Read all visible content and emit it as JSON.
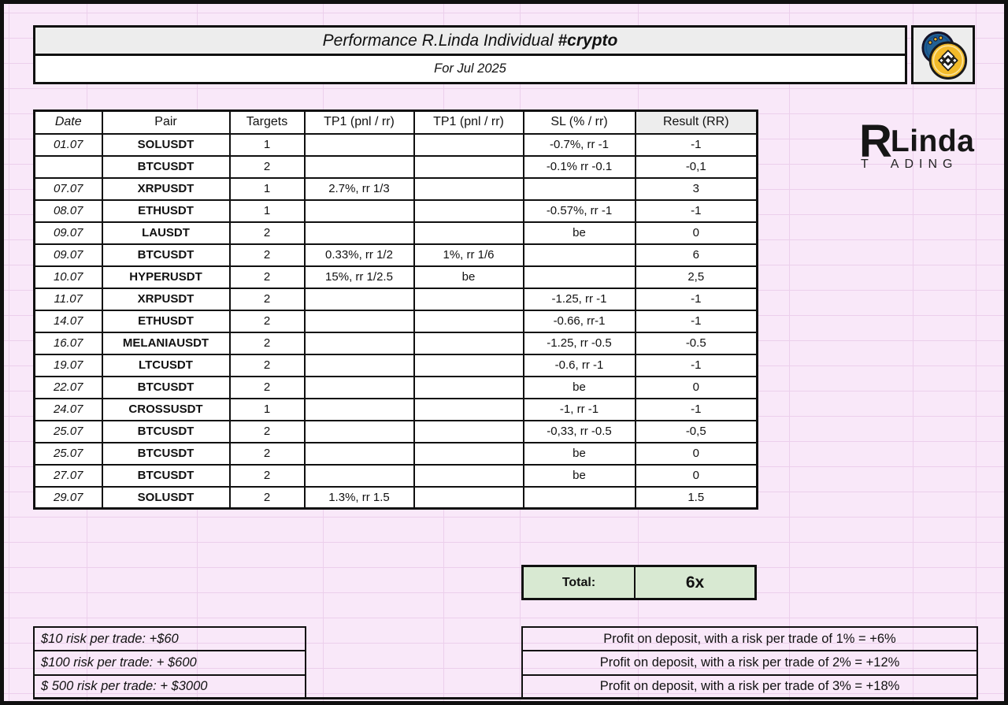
{
  "colors": {
    "page_bg": "#f9e8f9",
    "grid_line": "#eccfec",
    "border": "#101010",
    "cell_yellow": "#fdf2cc",
    "cell_red": "#f3cbca",
    "cell_green": "#d8e9d2",
    "cell_gray": "#d6d6d6",
    "header_gray": "#ededed",
    "coin_gold": "#f2ba2a",
    "coin_blue": "#236093"
  },
  "header": {
    "title_main": "Performance R.Linda Individual ",
    "title_tag": "#crypto",
    "subtitle": "For Jul 2025"
  },
  "brand": {
    "initial": "R",
    "name": "Linda",
    "tagline_left": "T",
    "tagline_right": "ADING"
  },
  "table": {
    "headers": [
      "Date",
      "Pair",
      "Targets",
      "TP1 (pnl / rr)",
      "TP1 (pnl / rr)",
      "SL (% / rr)",
      "Result (RR)"
    ],
    "rows": [
      {
        "date": "01.07",
        "pair": "SOLUSDT",
        "targets": "1",
        "tp1": "",
        "tp2": "",
        "sl": "-0.7%, rr -1",
        "result": "-1",
        "status": "loss"
      },
      {
        "date": "",
        "pair": "BTCUSDT",
        "targets": "2",
        "tp1": "",
        "tp2": "",
        "sl": "-0.1% rr -0.1",
        "result": "-0,1",
        "status": "loss"
      },
      {
        "date": "07.07",
        "pair": "XRPUSDT",
        "targets": "1",
        "tp1": "2.7%, rr 1/3",
        "tp2": "",
        "sl": "",
        "result": "3",
        "status": "win"
      },
      {
        "date": "08.07",
        "pair": "ETHUSDT",
        "targets": "1",
        "tp1": "",
        "tp2": "",
        "sl": "-0.57%, rr -1",
        "result": "-1",
        "status": "loss"
      },
      {
        "date": "09.07",
        "pair": "LAUSDT",
        "targets": "2",
        "tp1": "",
        "tp2": "",
        "sl": "be",
        "result": "0",
        "status": "be"
      },
      {
        "date": "09.07",
        "pair": "BTCUSDT",
        "targets": "2",
        "tp1": "0.33%, rr 1/2",
        "tp2": "1%, rr 1/6",
        "sl": "",
        "result": "6",
        "status": "win"
      },
      {
        "date": "10.07",
        "pair": "HYPERUSDT",
        "targets": "2",
        "tp1": "15%, rr 1/2.5",
        "tp2": "be",
        "sl": "",
        "result": "2,5",
        "status": "win"
      },
      {
        "date": "11.07",
        "pair": "XRPUSDT",
        "targets": "2",
        "tp1": "",
        "tp2": "",
        "sl": "-1.25, rr -1",
        "result": "-1",
        "status": "loss"
      },
      {
        "date": "14.07",
        "pair": "ETHUSDT",
        "targets": "2",
        "tp1": "",
        "tp2": "",
        "sl": "-0.66, rr-1",
        "result": "-1",
        "status": "loss"
      },
      {
        "date": "16.07",
        "pair": "MELANIAUSDT",
        "targets": "2",
        "tp1": "",
        "tp2": "",
        "sl": "-1.25, rr -0.5",
        "result": "-0.5",
        "status": "loss"
      },
      {
        "date": "19.07",
        "pair": "LTCUSDT",
        "targets": "2",
        "tp1": "",
        "tp2": "",
        "sl": "-0.6, rr -1",
        "result": "-1",
        "status": "loss"
      },
      {
        "date": "22.07",
        "pair": "BTCUSDT",
        "targets": "2",
        "tp1": "",
        "tp2": "",
        "sl": "be",
        "result": "0",
        "status": "be"
      },
      {
        "date": "24.07",
        "pair": "CROSSUSDT",
        "targets": "1",
        "tp1": "",
        "tp2": "",
        "sl": "-1, rr -1",
        "result": "-1",
        "status": "loss"
      },
      {
        "date": "25.07",
        "pair": "BTCUSDT",
        "targets": "2",
        "tp1": "",
        "tp2": "",
        "sl": "-0,33, rr -0.5",
        "result": "-0,5",
        "status": "loss"
      },
      {
        "date": "25.07",
        "pair": "BTCUSDT",
        "targets": "2",
        "tp1": "",
        "tp2": "",
        "sl": "be",
        "result": "0",
        "status": "be"
      },
      {
        "date": "27.07",
        "pair": "BTCUSDT",
        "targets": "2",
        "tp1": "",
        "tp2": "",
        "sl": "be",
        "result": "0",
        "status": "be"
      },
      {
        "date": "29.07",
        "pair": "SOLUSDT",
        "targets": "2",
        "tp1": "1.3%, rr 1.5",
        "tp2": "",
        "sl": "",
        "result": "1.5",
        "status": "win"
      }
    ],
    "total_label": "Total:",
    "total_value": "6x"
  },
  "footer": {
    "risk_notes": [
      "$10 risk per trade: +$60",
      "$100 risk per trade: + $600",
      "$ 500 risk per trade: + $3000"
    ],
    "profit_notes": [
      "Profit on deposit, with a risk per trade of 1% = +6%",
      "Profit on deposit, with a risk per trade of 2% = +12%",
      "Profit on deposit, with a risk per trade of 3% = +18%"
    ]
  }
}
